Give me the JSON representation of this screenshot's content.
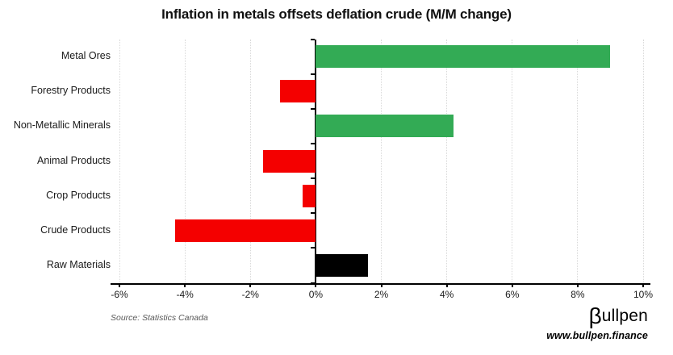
{
  "title": "Inflation in metals offsets deflation crude (M/M change)",
  "source_note": "Source: Statistics Canada",
  "branding": {
    "logo_beta": "β",
    "logo_text": "ullpen",
    "website": "www.bullpen.finance"
  },
  "colors": {
    "positive": "#33ab55",
    "negative": "#f40000",
    "aggregate": "#000000",
    "gridline": "#d9d9d9",
    "axis": "#000000"
  },
  "chart_data": {
    "type": "bar",
    "orientation": "horizontal",
    "title": "Inflation in metals offsets deflation crude (M/M change)",
    "xlabel": "",
    "ylabel": "",
    "categories": [
      "Metal Ores",
      "Forestry Products",
      "Non-Metallic Minerals",
      "Animal Products",
      "Crop Products",
      "Crude Products",
      "Raw Materials"
    ],
    "values": [
      9.0,
      -1.1,
      4.2,
      -1.6,
      -0.4,
      -4.3,
      1.6
    ],
    "bar_colors": [
      "#33ab55",
      "#f40000",
      "#33ab55",
      "#f40000",
      "#f40000",
      "#f40000",
      "#000000"
    ],
    "xlim": [
      -6,
      10
    ],
    "xticks": [
      -6,
      -4,
      -2,
      0,
      2,
      4,
      6,
      8,
      10
    ],
    "xtick_labels": [
      "-6%",
      "-4%",
      "-2%",
      "0%",
      "2%",
      "4%",
      "6%",
      "8%",
      "10%"
    ],
    "grid": "vertical-dotted",
    "legend": "none",
    "unit": "percent"
  }
}
